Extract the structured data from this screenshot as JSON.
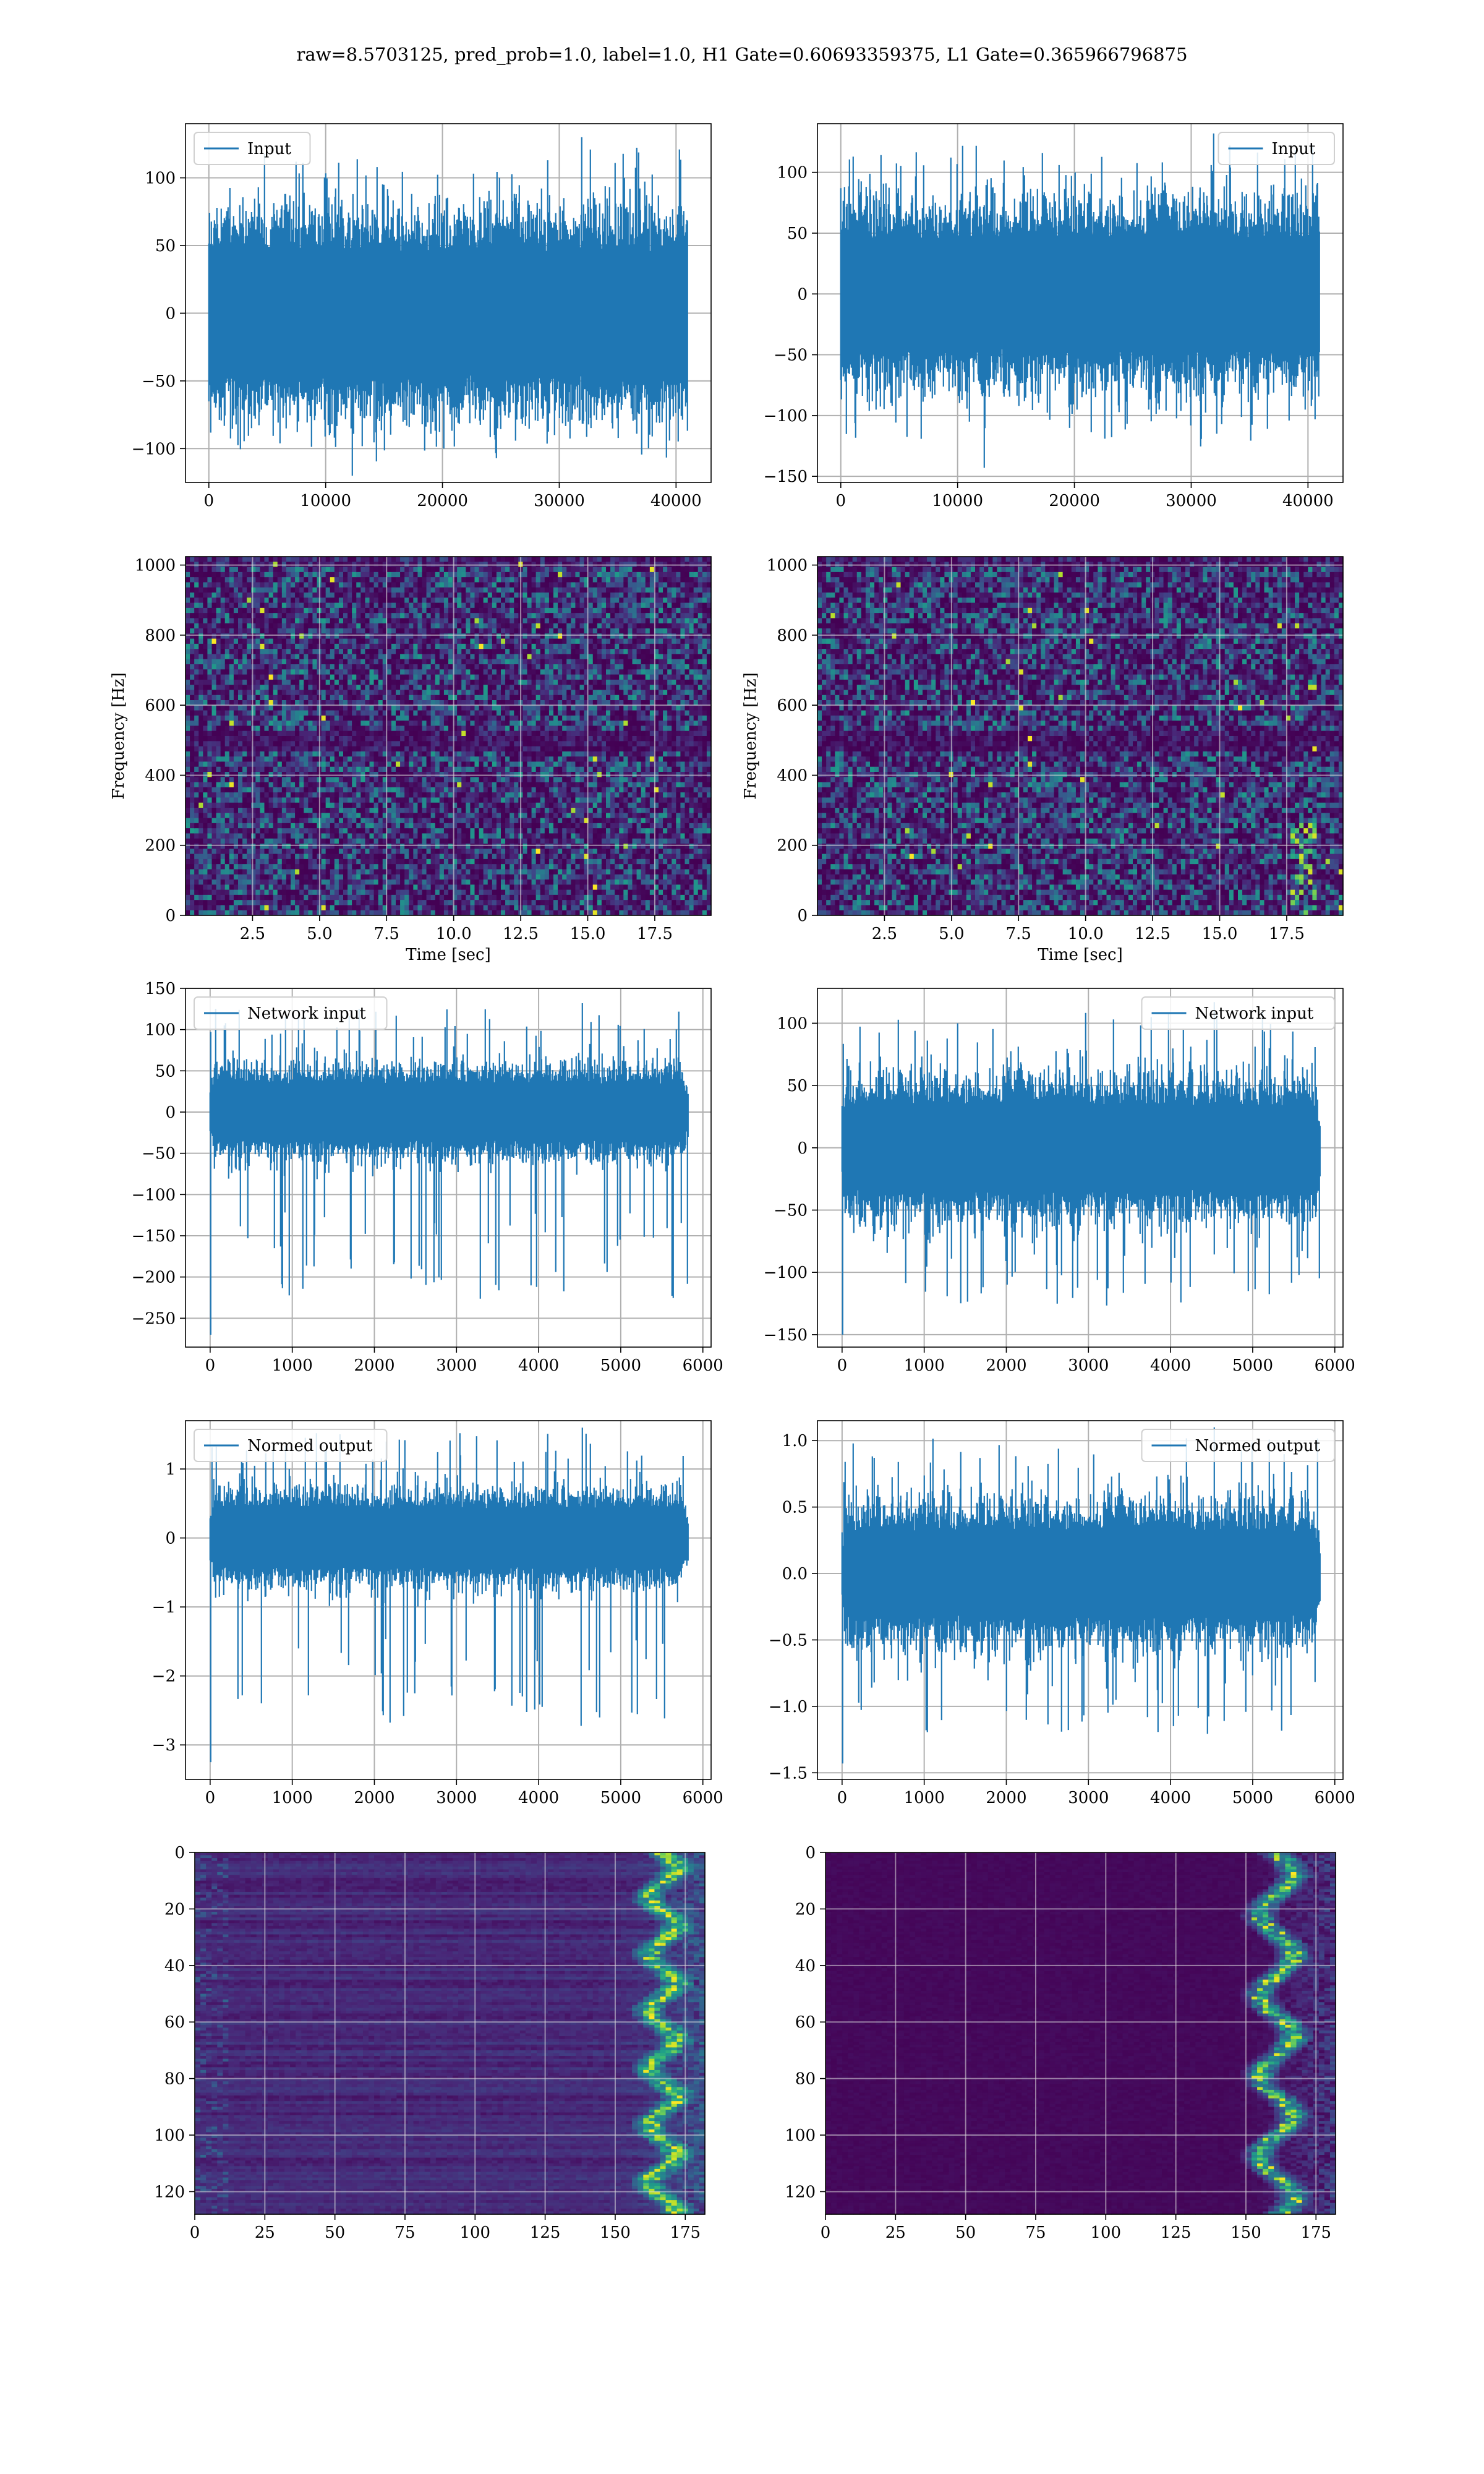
{
  "figure": {
    "title": "raw=8.5703125, pred_prob=1.0, label=1.0, H1 Gate=0.60693359375, L1 Gate=0.365966796875",
    "colors": {
      "signal": "#1f77b4",
      "viridis_low": "#440154",
      "viridis_high": "#fde725"
    }
  },
  "chart_data": [
    {
      "id": "input-h1",
      "type": "line",
      "legend": "Input",
      "legend_position": "upper-left",
      "x_range": [
        0,
        40960
      ],
      "xlim": [
        -2000,
        43000
      ],
      "ylim": [
        -125,
        140
      ],
      "xticks": [
        "0",
        "10000",
        "20000",
        "30000",
        "40000"
      ],
      "yticks": [
        "100",
        "50",
        "0",
        "−50",
        "−100"
      ],
      "envelope": {
        "core": 60,
        "peak": 130,
        "trough": -120
      },
      "grid": true
    },
    {
      "id": "input-l1",
      "type": "line",
      "legend": "Input",
      "legend_position": "upper-right",
      "x_range": [
        0,
        40960
      ],
      "xlim": [
        -2000,
        43000
      ],
      "ylim": [
        -155,
        140
      ],
      "xticks": [
        "0",
        "10000",
        "20000",
        "30000",
        "40000"
      ],
      "yticks": [
        "100",
        "50",
        "0",
        "−50",
        "−100",
        "−150"
      ],
      "envelope": {
        "core": 60,
        "peak": 132,
        "trough": -143
      },
      "grid": true
    },
    {
      "id": "spectrogram-h1",
      "type": "heatmap",
      "xlabel": "Time [sec]",
      "ylabel": "Frequency [Hz]",
      "xlim": [
        0,
        19.6
      ],
      "ylim": [
        0,
        1024
      ],
      "xticks": [
        "2.5",
        "5.0",
        "7.5",
        "10.0",
        "12.5",
        "15.0",
        "17.5"
      ],
      "yticks": [
        "1000",
        "800",
        "600",
        "400",
        "200",
        "0"
      ],
      "colormap": "viridis",
      "grid": true
    },
    {
      "id": "spectrogram-l1",
      "type": "heatmap",
      "xlabel": "Time [sec]",
      "ylabel": "Frequency [Hz]",
      "xlim": [
        0,
        19.6
      ],
      "ylim": [
        0,
        1024
      ],
      "xticks": [
        "2.5",
        "5.0",
        "7.5",
        "10.0",
        "12.5",
        "15.0",
        "17.5"
      ],
      "yticks": [
        "1000",
        "800",
        "600",
        "400",
        "200",
        "0"
      ],
      "colormap": "viridis",
      "grid": true
    },
    {
      "id": "network-input-h1",
      "type": "line",
      "legend": "Network input",
      "legend_position": "upper-left",
      "x_range": [
        0,
        5820
      ],
      "xlim": [
        -300,
        6100
      ],
      "ylim": [
        -285,
        150
      ],
      "xticks": [
        "0",
        "1000",
        "2000",
        "3000",
        "4000",
        "5000",
        "6000"
      ],
      "yticks": [
        "150",
        "100",
        "50",
        "0",
        "−50",
        "−100",
        "−150",
        "−200",
        "−250"
      ],
      "envelope": {
        "core": 45,
        "peak": 132,
        "trough": -270
      },
      "grid": true
    },
    {
      "id": "network-input-l1",
      "type": "line",
      "legend": "Network input",
      "legend_position": "upper-right",
      "x_range": [
        0,
        5820
      ],
      "xlim": [
        -300,
        6100
      ],
      "ylim": [
        -160,
        128
      ],
      "xticks": [
        "0",
        "1000",
        "2000",
        "3000",
        "4000",
        "5000",
        "6000"
      ],
      "yticks": [
        "100",
        "50",
        "0",
        "−50",
        "−100",
        "−150"
      ],
      "envelope": {
        "core": 45,
        "peak": 117,
        "trough": -150
      },
      "grid": true
    },
    {
      "id": "normed-output-h1",
      "type": "line",
      "legend": "Normed output",
      "legend_position": "upper-left",
      "x_range": [
        0,
        5820
      ],
      "xlim": [
        -300,
        6100
      ],
      "ylim": [
        -3.5,
        1.7
      ],
      "xticks": [
        "0",
        "1000",
        "2000",
        "3000",
        "4000",
        "5000",
        "6000"
      ],
      "yticks": [
        "1",
        "0",
        "−1",
        "−2",
        "−3"
      ],
      "envelope": {
        "core": 0.55,
        "peak": 1.6,
        "trough": -3.25
      },
      "grid": true
    },
    {
      "id": "normed-output-l1",
      "type": "line",
      "legend": "Normed output",
      "legend_position": "upper-right",
      "x_range": [
        0,
        5820
      ],
      "xlim": [
        -300,
        6100
      ],
      "ylim": [
        -1.55,
        1.15
      ],
      "xticks": [
        "0",
        "1000",
        "2000",
        "3000",
        "4000",
        "5000",
        "6000"
      ],
      "yticks": [
        "1.0",
        "0.5",
        "0.0",
        "−0.5",
        "−1.0",
        "−1.5"
      ],
      "envelope": {
        "core": 0.42,
        "peak": 1.1,
        "trough": -1.43
      },
      "grid": true
    },
    {
      "id": "feature-map-h1",
      "type": "heatmap",
      "xlim": [
        0,
        182
      ],
      "ylim": [
        128,
        0
      ],
      "xticks": [
        "0",
        "25",
        "50",
        "75",
        "100",
        "125",
        "150",
        "175"
      ],
      "yticks": [
        "0",
        "20",
        "40",
        "60",
        "80",
        "100",
        "120"
      ],
      "colormap": "viridis",
      "grid": true
    },
    {
      "id": "feature-map-l1",
      "type": "heatmap",
      "xlim": [
        0,
        182
      ],
      "ylim": [
        128,
        0
      ],
      "xticks": [
        "0",
        "25",
        "50",
        "75",
        "100",
        "125",
        "150",
        "175"
      ],
      "yticks": [
        "0",
        "20",
        "40",
        "60",
        "80",
        "100",
        "120"
      ],
      "colormap": "viridis",
      "grid": true
    }
  ]
}
